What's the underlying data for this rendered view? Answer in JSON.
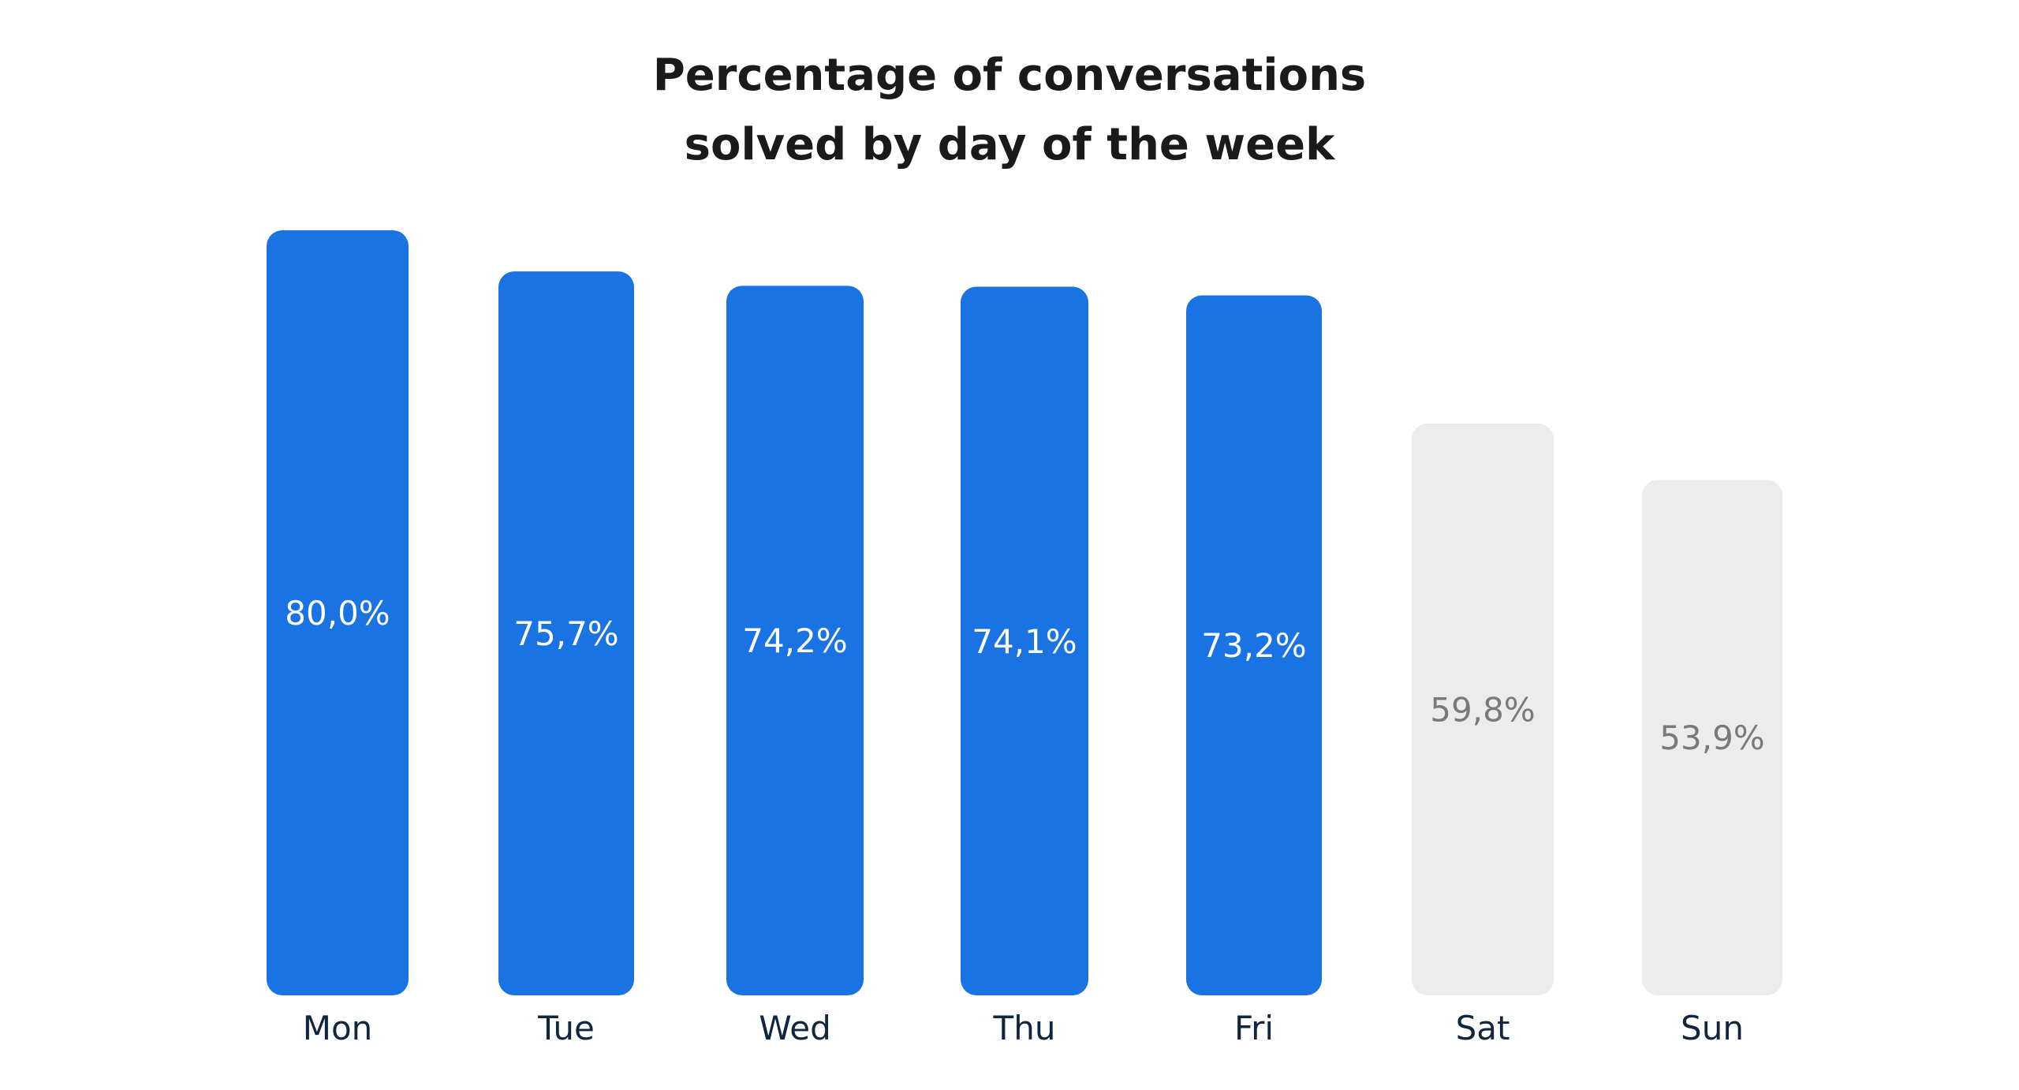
{
  "chart_data": {
    "type": "bar",
    "title": "Percentage of conversations solved by day of the week",
    "title_lines": [
      "Percentage of conversations",
      "solved by day of the week"
    ],
    "categories": [
      "Mon",
      "Tue",
      "Wed",
      "Thu",
      "Fri",
      "Sat",
      "Sun"
    ],
    "values": [
      80.0,
      75.7,
      74.2,
      74.1,
      73.2,
      59.8,
      53.9
    ],
    "value_labels": [
      "80,0%",
      "75,7%",
      "74,2%",
      "74,1%",
      "73,2%",
      "59,8%",
      "53,9%"
    ],
    "highlight": [
      true,
      true,
      true,
      true,
      true,
      false,
      false
    ],
    "xlabel": "",
    "ylabel": "",
    "ylim": [
      0,
      80
    ],
    "grid": false,
    "legend": "none"
  },
  "colors": {
    "highlight_bar": "#1a73e3",
    "muted_bar": "#ececec",
    "highlight_label": "#ffffff",
    "muted_label": "#7a7a7a",
    "title": "#1a1a1a",
    "tick_label": "#0f2540"
  }
}
